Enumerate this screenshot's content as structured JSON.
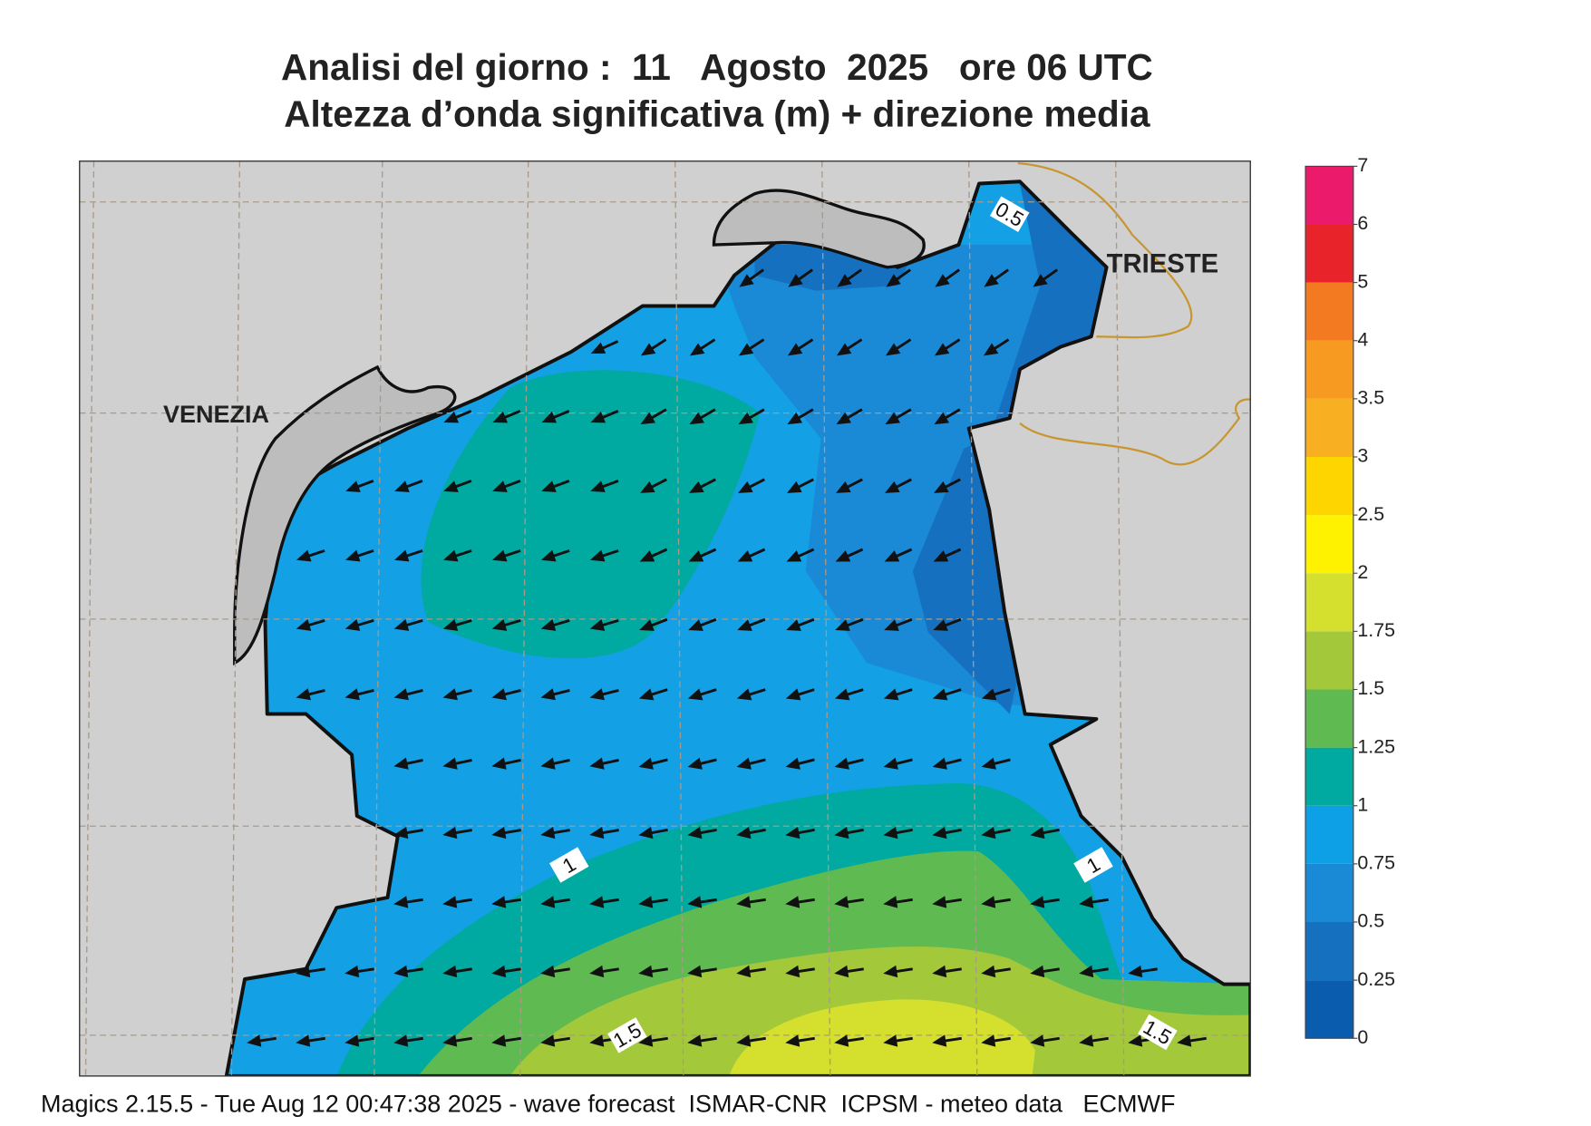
{
  "title": {
    "line1": "Analisi del giorno :  11   Agosto  2025   ore 06 UTC",
    "line2": "Altezza d’onda significativa (m) + direzione media"
  },
  "places": [
    "VENEZIA",
    "TRIESTE"
  ],
  "contour_labels": [
    0.5,
    1,
    1,
    1.5,
    1.5
  ],
  "colorbar": {
    "levels": [
      0,
      0.25,
      0.5,
      0.75,
      1,
      1.25,
      1.5,
      1.75,
      2,
      2.5,
      3,
      3.5,
      4,
      5,
      6,
      7
    ],
    "colors": [
      "#0a5cae",
      "#1570c0",
      "#1a8ad6",
      "#0ea0e6",
      "#00aaa0",
      "#5fba52",
      "#a3c93a",
      "#d4df2e",
      "#fff200",
      "#ffd500",
      "#f8b022",
      "#f79a22",
      "#f47a22",
      "#e8242a",
      "#ec1a6b"
    ]
  },
  "footer": "Magics 2.15.5 - Tue Aug 12 00:47:38 2025 - wave forecast  ISMAR-CNR  ICPSM - meteo data   ECMWF"
}
